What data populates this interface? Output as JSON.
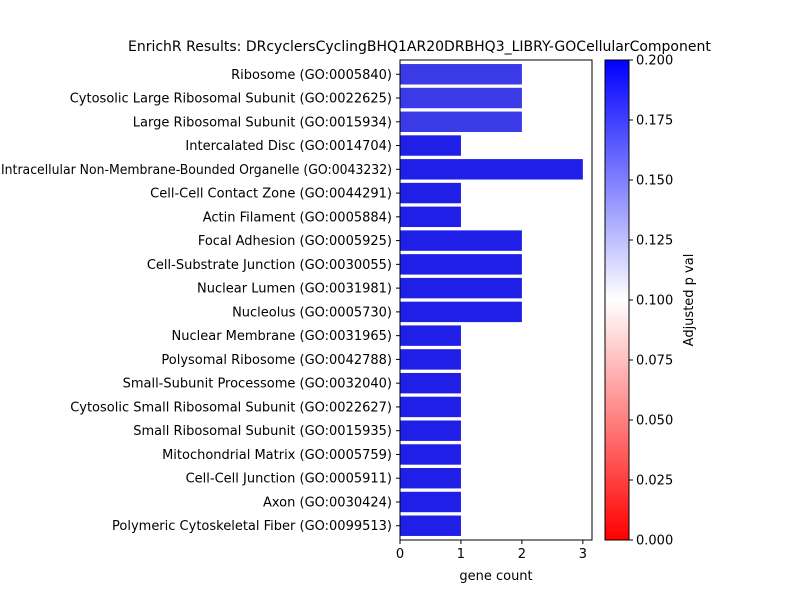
{
  "chart_data": {
    "type": "bar",
    "orientation": "horizontal",
    "title": "EnrichR Results: DRcyclersCyclingBHQ1AR20DRBHQ3_LIBRY-GOCellularComponent",
    "xlabel": "gene count",
    "ylabel": "",
    "xlim": [
      0,
      3.15
    ],
    "xticks": [
      "0",
      "1",
      "2",
      "3"
    ],
    "categories": [
      "Ribosome (GO:0005840)",
      "Cytosolic Large Ribosomal Subunit (GO:0022625)",
      "Large Ribosomal Subunit (GO:0015934)",
      "Intercalated Disc (GO:0014704)",
      "Intracellular Non-Membrane-Bounded Organelle (GO:0043232)",
      "Cell-Cell Contact Zone (GO:0044291)",
      "Actin Filament (GO:0005884)",
      "Focal Adhesion (GO:0005925)",
      "Cell-Substrate Junction (GO:0030055)",
      "Nuclear Lumen (GO:0031981)",
      "Nucleolus (GO:0005730)",
      "Nuclear Membrane (GO:0031965)",
      "Polysomal Ribosome (GO:0042788)",
      "Small-Subunit Processome (GO:0032040)",
      "Cytosolic Small Ribosomal Subunit (GO:0022627)",
      "Small Ribosomal Subunit (GO:0015935)",
      "Mitochondrial Matrix (GO:0005759)",
      "Cell-Cell Junction (GO:0005911)",
      "Axon (GO:0030424)",
      "Polymeric Cytoskeletal Fiber (GO:0099513)"
    ],
    "values": [
      2,
      2,
      2,
      1,
      3,
      1,
      1,
      2,
      2,
      2,
      2,
      1,
      1,
      1,
      1,
      1,
      1,
      1,
      1,
      1
    ],
    "bar_colors": [
      "#3a3ae6",
      "#3a3ae6",
      "#3a3ae6",
      "#1f1fe8",
      "#1f1fe8",
      "#1f1fe8",
      "#1f1fe8",
      "#1f1fe8",
      "#1f1fe8",
      "#1f1fe8",
      "#1f1fe8",
      "#1f1fe8",
      "#1f1fe8",
      "#1f1fe8",
      "#1f1fe8",
      "#1f1fe8",
      "#1f1fe8",
      "#1f1fe8",
      "#1f1fe8",
      "#1f1fe8"
    ],
    "colorbar": {
      "label": "Adjusted p val",
      "range": [
        0,
        0.2
      ],
      "ticks": [
        "0.000",
        "0.025",
        "0.050",
        "0.075",
        "0.100",
        "0.125",
        "0.150",
        "0.175",
        "0.200"
      ],
      "colors": [
        "#ff0000",
        "#ffffff",
        "#0000ff"
      ]
    },
    "grid": false,
    "legend": "none"
  }
}
